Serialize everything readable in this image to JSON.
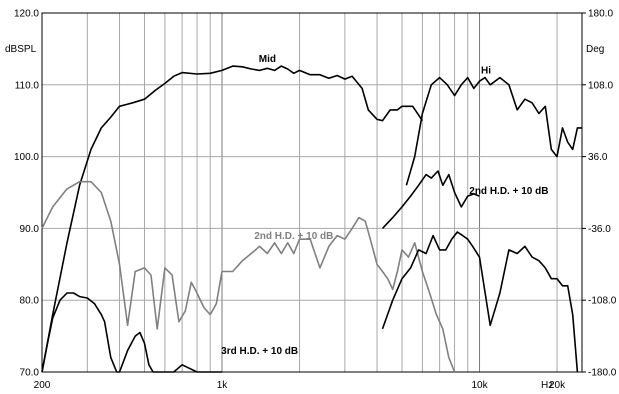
{
  "chart_data": {
    "type": "line",
    "ylabel_left": "dBSPL",
    "ylabel_right": "Deg",
    "x_unit": "Hz",
    "x_scale": "log",
    "xlim": [
      200,
      25000
    ],
    "ylim": [
      70,
      120
    ],
    "y2lim": [
      -180,
      180
    ],
    "grid": true,
    "y_ticks": [
      {
        "v": 120,
        "label": "120.0"
      },
      {
        "v": 110,
        "label": "110.0"
      },
      {
        "v": 100,
        "label": "100.0"
      },
      {
        "v": 90,
        "label": "90.0"
      },
      {
        "v": 80,
        "label": "80.0"
      },
      {
        "v": 70,
        "label": "70.0"
      }
    ],
    "y2_ticks": [
      {
        "v": 180,
        "label": "180.0"
      },
      {
        "v": 108,
        "label": "108.0"
      },
      {
        "v": 36,
        "label": "36.0"
      },
      {
        "v": -36,
        "label": "-36.0"
      },
      {
        "v": -108,
        "label": "-108.0"
      },
      {
        "v": -180,
        "label": "-180.0"
      }
    ],
    "x_ticks": [
      {
        "v": 200,
        "label": "200"
      },
      {
        "v": 1000,
        "label": "1k"
      },
      {
        "v": 10000,
        "label": "10k"
      },
      {
        "v": 20000,
        "label": "20k"
      }
    ],
    "annotations": [
      {
        "text": "Mid",
        "x": 1500,
        "y": 113.2,
        "color": "#000000"
      },
      {
        "text": "Hi",
        "x": 10600,
        "y": 111.6,
        "color": "#000000"
      },
      {
        "text": "2nd H.D. + 10 dB",
        "x": 13000,
        "y": 94.8,
        "color": "#000000"
      },
      {
        "text": "2nd H.D. + 10 dB",
        "x": 1900,
        "y": 88.5,
        "color": "#808080"
      },
      {
        "text": "3rd H.D. + 10 dB",
        "x": 1400,
        "y": 72.5,
        "color": "#000000"
      }
    ],
    "series": [
      {
        "color": "#000000",
        "x": [
          200,
          220,
          250,
          280,
          310,
          340,
          370,
          400,
          450,
          500,
          550,
          600,
          650,
          700,
          800,
          900,
          1000,
          1100,
          1200,
          1300,
          1400,
          1500,
          1600,
          1700,
          1800,
          1900,
          2000,
          2200,
          2400,
          2600,
          2800,
          3000,
          3200,
          3500,
          3700,
          4000,
          4200,
          4500,
          4800,
          5000,
          5500,
          6000
        ],
        "y": [
          70,
          78,
          88,
          96,
          101,
          104,
          105.5,
          107,
          107.5,
          108,
          109.2,
          110.2,
          111.2,
          111.7,
          111.5,
          111.6,
          112,
          112.6,
          112.5,
          112.2,
          112,
          112.3,
          112,
          112.6,
          112.2,
          111.6,
          112,
          111.4,
          111.4,
          110.9,
          111.3,
          110.8,
          111.2,
          109.5,
          106.5,
          105.2,
          105,
          106.5,
          106.5,
          107,
          107,
          105
        ]
      },
      {
        "color": "#000000",
        "x": [
          5200,
          5600,
          6000,
          6500,
          7000,
          7500,
          8000,
          8500,
          9000,
          9500,
          10000,
          10500,
          11000,
          12000,
          13000,
          14000,
          15000,
          16000,
          17000,
          18000,
          19000,
          20000,
          21000,
          22000,
          23000,
          24000,
          25000
        ],
        "y": [
          96,
          100,
          106,
          110,
          111,
          110,
          108.5,
          110,
          111,
          109.5,
          110.5,
          111,
          110,
          111,
          110,
          106.5,
          108,
          107.5,
          106,
          107,
          101,
          100,
          104,
          102,
          101,
          104,
          104
        ]
      },
      {
        "color": "#000000",
        "x": [
          4200,
          4600,
          5000,
          5400,
          5800,
          6200,
          6500,
          6900,
          7200,
          7600,
          8000,
          8500,
          9000,
          9500,
          10000
        ],
        "y": [
          90,
          91.5,
          93,
          94.5,
          96,
          97.5,
          97,
          98,
          96,
          97.5,
          95,
          93,
          94.5,
          94.8,
          94.5
        ]
      },
      {
        "color": "#808080",
        "x": [
          200,
          220,
          250,
          280,
          310,
          340,
          370,
          400,
          430,
          460,
          500,
          530,
          560,
          600,
          640,
          680,
          720,
          760,
          800,
          850,
          900,
          950,
          1000,
          1100,
          1200,
          1300,
          1400,
          1500,
          1600,
          1700,
          1800,
          1900,
          2000,
          2200,
          2400,
          2600,
          2800,
          3000,
          3200,
          3400,
          3600,
          3800,
          4000,
          4200,
          4400,
          4600,
          4800,
          5000,
          5300,
          5600,
          6000,
          6400,
          6800,
          7200,
          7600,
          8000
        ],
        "y": [
          90,
          93,
          95.5,
          96.5,
          96.5,
          95,
          91,
          85,
          76.5,
          84,
          84.5,
          83.5,
          76,
          84.5,
          83.5,
          77,
          78.5,
          82.5,
          81,
          79,
          78,
          79.5,
          84,
          84,
          85.5,
          86.5,
          87.5,
          86.5,
          88,
          86.5,
          88,
          86.5,
          88.5,
          88.5,
          84.5,
          87.5,
          89,
          88.5,
          90,
          91.5,
          91,
          88,
          85,
          84,
          83,
          81.5,
          84,
          87,
          86,
          88,
          84,
          81,
          78,
          76,
          72,
          68
        ]
      },
      {
        "color": "#000000",
        "x": [
          200,
          210,
          220,
          235,
          250,
          265,
          280,
          300,
          320,
          340,
          350,
          370,
          390,
          400,
          430,
          460,
          480,
          500,
          520,
          540,
          560,
          600,
          650,
          700,
          800,
          900,
          1000
        ],
        "y": [
          70,
          74,
          77.5,
          80,
          81,
          81,
          80.5,
          80.3,
          79.5,
          78,
          77,
          72,
          70,
          70,
          73,
          75,
          75.5,
          74,
          71,
          70,
          70,
          69.5,
          70,
          71,
          70,
          70,
          70
        ]
      },
      {
        "color": "#000000",
        "x": [
          4200,
          4600,
          5000,
          5400,
          5800,
          6200,
          6600,
          7000,
          7400,
          7800,
          8200,
          8600,
          9000,
          9400,
          10000,
          11000,
          12000,
          13000,
          14000,
          15000,
          16000,
          17000,
          18000,
          19000,
          20000,
          21000,
          22000,
          23000,
          24000
        ],
        "y": [
          76,
          80,
          83,
          84.5,
          87,
          86.5,
          89,
          87,
          87,
          88.5,
          89.5,
          89,
          88.5,
          87.5,
          86,
          76.5,
          81,
          87,
          86.5,
          87.5,
          86,
          85.5,
          84.5,
          83,
          83,
          82,
          82,
          78,
          70
        ]
      }
    ]
  }
}
